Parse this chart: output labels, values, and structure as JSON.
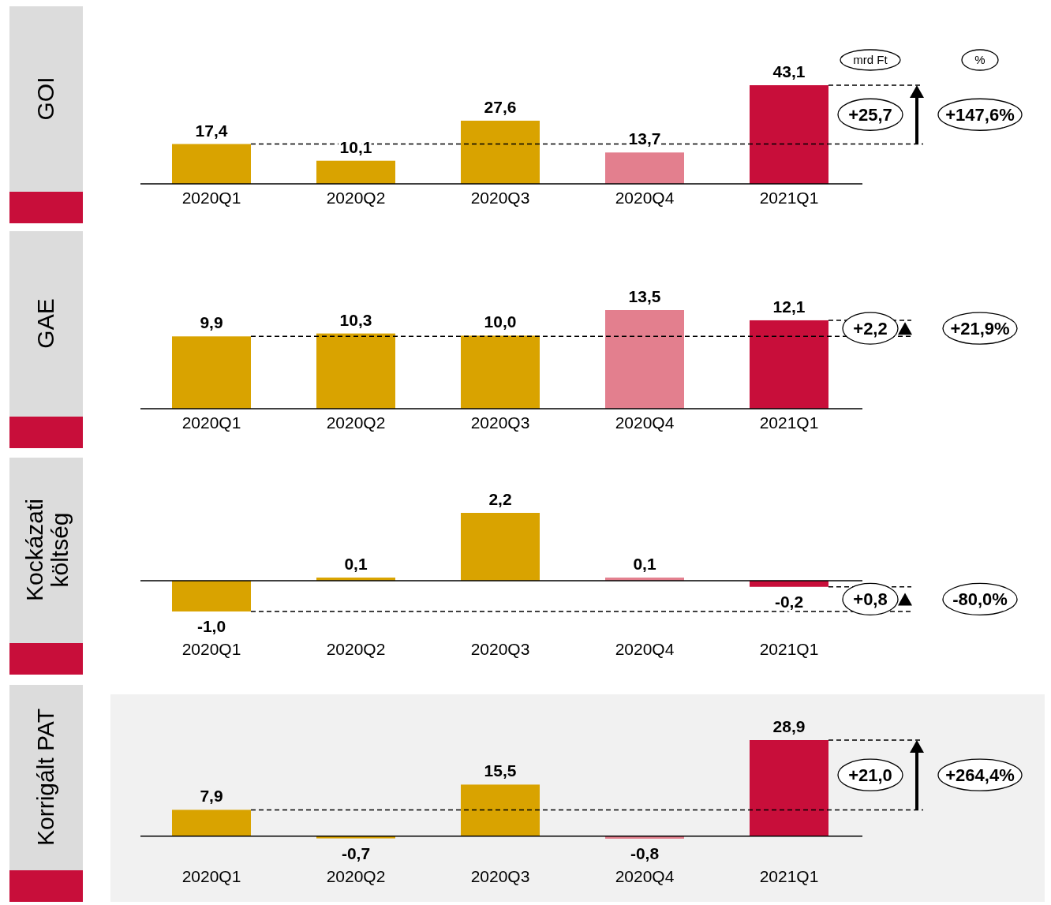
{
  "chart_data": [
    {
      "type": "bar",
      "title": "GOI",
      "categories": [
        "2020Q1",
        "2020Q2",
        "2020Q3",
        "2020Q4",
        "2021Q1"
      ],
      "values": [
        17.4,
        10.1,
        27.6,
        13.7,
        43.1
      ],
      "colors": [
        "#d9a300",
        "#d9a300",
        "#d9a300",
        "#e37f8e",
        "#c80e3a"
      ],
      "value_labels": [
        "17,4",
        "10,1",
        "27,6",
        "13,7",
        "43,1"
      ],
      "ref_lines": [
        {
          "axis": "y",
          "value": 17.4,
          "line_style": "dashed"
        },
        {
          "axis": "y",
          "value": 43.1,
          "line_style": "dashed"
        }
      ],
      "annotations": [
        "+25,7",
        "+147,6%",
        "mrd Ft",
        "%"
      ]
    },
    {
      "type": "bar",
      "title": "GAE",
      "categories": [
        "2020Q1",
        "2020Q2",
        "2020Q3",
        "2020Q4",
        "2021Q1"
      ],
      "values": [
        9.9,
        10.3,
        10.0,
        13.5,
        12.1
      ],
      "colors": [
        "#d9a300",
        "#d9a300",
        "#d9a300",
        "#e37f8e",
        "#c80e3a"
      ],
      "value_labels": [
        "9,9",
        "10,3",
        "10,0",
        "13,5",
        "12,1"
      ],
      "ref_lines": [
        {
          "axis": "y",
          "value": 9.9,
          "line_style": "dashed"
        },
        {
          "axis": "y",
          "value": 12.1,
          "line_style": "dashed"
        }
      ],
      "annotations": [
        "+2,2",
        "+21,9%"
      ]
    },
    {
      "type": "bar",
      "title": "Kockázati költség",
      "categories": [
        "2020Q1",
        "2020Q2",
        "2020Q3",
        "2020Q4",
        "2021Q1"
      ],
      "values": [
        -1.0,
        0.1,
        2.2,
        0.1,
        -0.2
      ],
      "colors": [
        "#d9a300",
        "#d9a300",
        "#d9a300",
        "#e37f8e",
        "#c80e3a"
      ],
      "value_labels": [
        "-1,0",
        "0,1",
        "2,2",
        "0,1",
        "-0,2"
      ],
      "ref_lines": [
        {
          "axis": "y",
          "value": -1.0,
          "line_style": "dashed"
        },
        {
          "axis": "y",
          "value": -0.2,
          "line_style": "dashed"
        }
      ],
      "annotations": [
        "+0,8",
        "-80,0%"
      ]
    },
    {
      "type": "bar",
      "title": "Korrigált PAT",
      "categories": [
        "2020Q1",
        "2020Q2",
        "2020Q3",
        "2020Q4",
        "2021Q1"
      ],
      "values": [
        7.9,
        -0.7,
        15.5,
        -0.8,
        28.9
      ],
      "colors": [
        "#d9a300",
        "#d9a300",
        "#d9a300",
        "#e37f8e",
        "#c80e3a"
      ],
      "value_labels": [
        "7,9",
        "-0,7",
        "15,5",
        "-0,8",
        "28,9"
      ],
      "ref_lines": [
        {
          "axis": "y",
          "value": 7.9,
          "line_style": "dashed"
        },
        {
          "axis": "y",
          "value": 28.9,
          "line_style": "dashed"
        }
      ],
      "annotations": [
        "+21,0",
        "+264,4%"
      ]
    }
  ]
}
